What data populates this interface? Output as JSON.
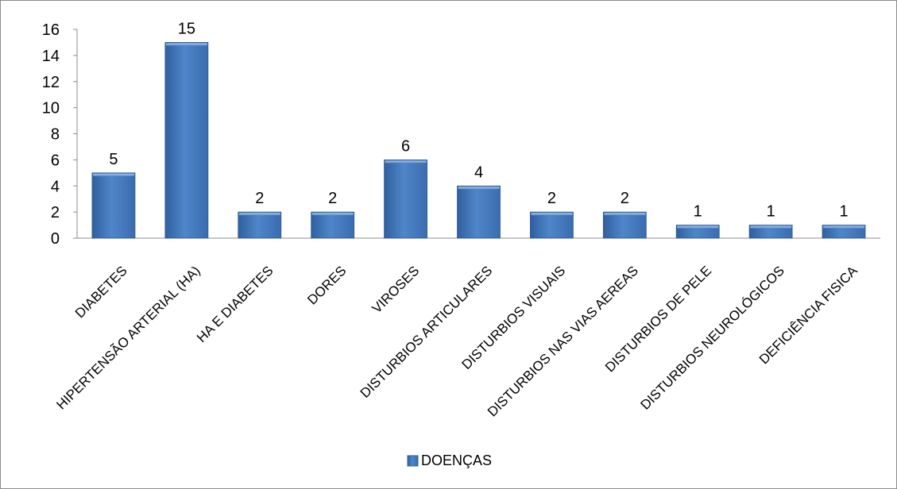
{
  "chart_data": {
    "type": "bar",
    "title": "",
    "xlabel": "",
    "ylabel": "",
    "ylim": [
      0,
      16
    ],
    "yticks": [
      0,
      2,
      4,
      6,
      8,
      10,
      12,
      14,
      16
    ],
    "grid": false,
    "legend_position": "bottom",
    "categories": [
      "DIABETES",
      "HIPERTENSÃO ARTERIAL (HA)",
      "HA E DIABETES",
      "DORES",
      "VIROSES",
      "DISTURBIOS ARTICULARES",
      "DISTURBIOS VISUAIS",
      "DISTURBIOS NAS VIAS AEREAS",
      "DISTURBIOS DE PELE",
      "DISTURBIOS NEUROLÓGICOS",
      "DEFICIÊNCIA FISICA"
    ],
    "series": [
      {
        "name": "DOENÇAS",
        "color": "#4a7ebb",
        "values": [
          5,
          15,
          2,
          2,
          6,
          4,
          2,
          2,
          1,
          1,
          1
        ]
      }
    ]
  }
}
